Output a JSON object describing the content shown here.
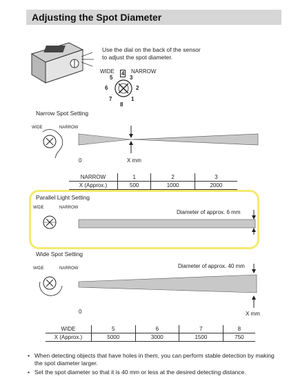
{
  "header": {
    "title": "Adjusting the Spot Diameter"
  },
  "instruction": {
    "line1": "Use the dial on the back of the sensor",
    "line2": "to adjust the spot diameter."
  },
  "dial": {
    "wide": "WIDE",
    "narrow": "NARROW",
    "n1": "1",
    "n2": "2",
    "n3": "3",
    "n4": "4",
    "n5": "5",
    "n6": "6",
    "n7": "7",
    "n8": "8"
  },
  "narrow_section": {
    "title": "Narrow Spot Setting",
    "axis_zero": "0",
    "axis_x": "X mm",
    "table": {
      "label": "NARROW",
      "row_label": "X (Approx.)",
      "settings": [
        "1",
        "2",
        "3"
      ],
      "distances": [
        "500",
        "1000",
        "2000"
      ]
    }
  },
  "parallel_section": {
    "title": "Parallel Light Setting",
    "diameter": "Diameter of approx. 6 mm"
  },
  "wide_section": {
    "title": "Wide Spot Setting",
    "diameter": "Diameter of approx. 40 mm",
    "axis_zero": "0",
    "axis_x": "X mm",
    "table": {
      "label": "WIDE",
      "row_label": "X (Approx.)",
      "settings": [
        "5",
        "6",
        "7",
        "8"
      ],
      "distances": [
        "5000",
        "3000",
        "1500",
        "750"
      ]
    }
  },
  "bullets": [
    "When detecting objects that have holes in them, you can perform stable detection by making the spot diameter larger.",
    "Set the spot diameter so that it is 40 mm or less at the desired detecting distance."
  ],
  "colors": {
    "header_bg": "#d6d6d6",
    "beam": "#c8c8c8",
    "highlight": "#f3ea6e"
  }
}
